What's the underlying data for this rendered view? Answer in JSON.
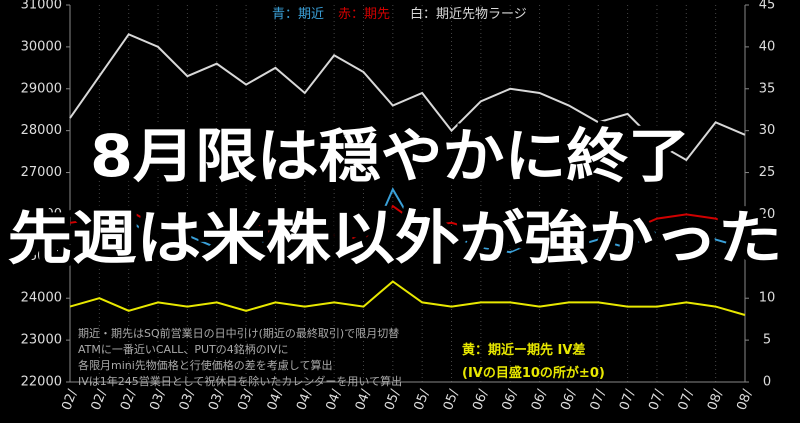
{
  "chart_data": {
    "type": "line",
    "categories": [
      "02/",
      "02/",
      "02/",
      "03/",
      "03/",
      "03/",
      "03/",
      "04/",
      "04/",
      "04/",
      "04/",
      "05/",
      "05/",
      "05/",
      "06/",
      "06/",
      "06/",
      "06/",
      "07/",
      "07/",
      "07/",
      "07/",
      "08/",
      "08/"
    ],
    "series": [
      {
        "name": "白：期近先物ラージ",
        "color": "#d8d8d8",
        "axis": "y",
        "values": [
          28300,
          29300,
          30300,
          30000,
          29300,
          29600,
          29100,
          29500,
          28900,
          29800,
          29400,
          28600,
          28900,
          28000,
          28700,
          29000,
          28900,
          28600,
          28200,
          28400,
          27700,
          27300,
          28200,
          27900
        ]
      },
      {
        "name": "赤：期先",
        "color": "#d00000",
        "axis": "y2",
        "values": [
          19,
          19.5,
          20.5,
          18.5,
          19,
          18,
          19.5,
          17.5,
          18.5,
          17.5,
          17,
          21,
          18.5,
          19,
          18,
          17.5,
          18.5,
          18,
          19,
          18,
          19.5,
          20,
          19.5,
          18.5
        ]
      },
      {
        "name": "青：期近",
        "color": "#3aa0d8",
        "axis": "y2",
        "values": [
          17.5,
          17,
          19.5,
          16.5,
          17.5,
          16,
          18.5,
          15.5,
          17,
          15.5,
          15,
          23,
          17,
          17.5,
          16,
          15.5,
          17,
          16,
          17,
          16,
          18,
          18.5,
          17,
          16
        ]
      },
      {
        "name": "黄：期近ー期先 IV差",
        "color": "#e8e800",
        "axis": "y2",
        "values": [
          9,
          10,
          8.5,
          9.5,
          9,
          9.5,
          8.5,
          9.5,
          9,
          9.5,
          9,
          12,
          9.5,
          9,
          9.5,
          9.5,
          9,
          9.5,
          9.5,
          9,
          9,
          9.5,
          9,
          8
        ]
      }
    ],
    "ylim": [
      22000,
      31000
    ],
    "yticks": [
      22000,
      23000,
      24000,
      25000,
      26000,
      27000,
      28000,
      29000,
      30000,
      31000
    ],
    "y2lim": [
      0,
      45
    ],
    "y2ticks": [
      0,
      5,
      10,
      15,
      20,
      25,
      30,
      35,
      40,
      45
    ],
    "grid": true,
    "annotations": [
      "(IVの目盛10の所が±0)"
    ],
    "notes": [
      "期近・期先はSQ前営業日の日中引け(期近の最終取引)で限月切替",
      "ATMに一番近いCALL、PUTの4銘柄のIVに",
      "各限月mini先物価格と行使価格の差を考慮して算出",
      "IVは1年245営業日として祝休日を除いたカレンダーを用いて算出"
    ],
    "overlay_text": [
      "8月限は穏やかに終了",
      "先週は米株以外が強かった"
    ]
  }
}
